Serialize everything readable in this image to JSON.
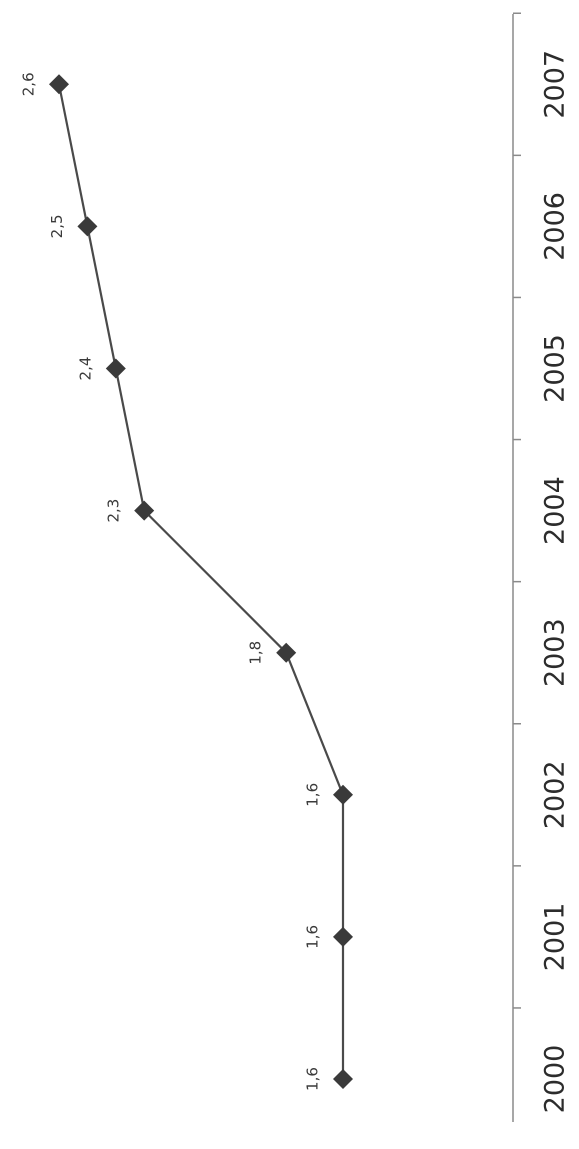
{
  "chart_data": {
    "type": "line",
    "orientation": "rotated 90 degrees clockwise",
    "categories": [
      "2000",
      "2001",
      "2002",
      "2003",
      "2004",
      "2005",
      "2006",
      "2007"
    ],
    "values": [
      1.6,
      1.6,
      1.6,
      1.8,
      2.3,
      2.4,
      2.5,
      2.6
    ],
    "data_labels": [
      "1,6",
      "1,6",
      "1,6",
      "1,8",
      "2,3",
      "2,4",
      "2,5",
      "2,6"
    ],
    "title": "",
    "xlabel": "",
    "ylabel": "",
    "legend": "none",
    "grid": false,
    "marker": "diamond",
    "colors": {
      "line": "#4a4a4a",
      "marker": "#3a3a3a",
      "axis": "#8a8a8a",
      "text": "#2c2c2c"
    }
  }
}
